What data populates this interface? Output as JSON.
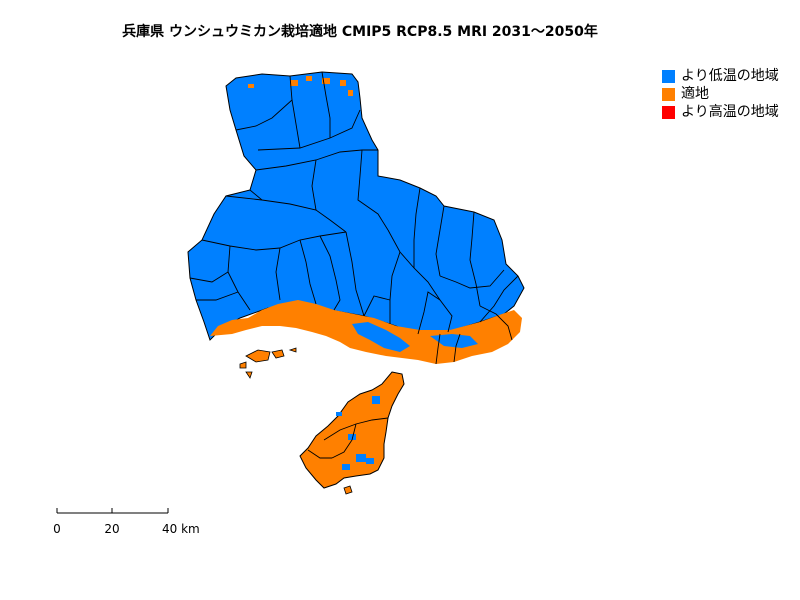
{
  "title": "兵庫県 ウンシュウミカン栽培適地 CMIP5 RCP8.5 MRI 2031～2050年",
  "legend": [
    {
      "label": "より低温の地域",
      "color": "#0080ff"
    },
    {
      "label": "適地",
      "color": "#ff8000"
    },
    {
      "label": "より高温の地域",
      "color": "#ff0000"
    }
  ],
  "scale": {
    "ticks": [
      "0",
      "20",
      "40 km"
    ]
  },
  "colors": {
    "cooler": "#0080ff",
    "suitable": "#ff8000",
    "warmer": "#ff0000",
    "border": "#000000"
  }
}
